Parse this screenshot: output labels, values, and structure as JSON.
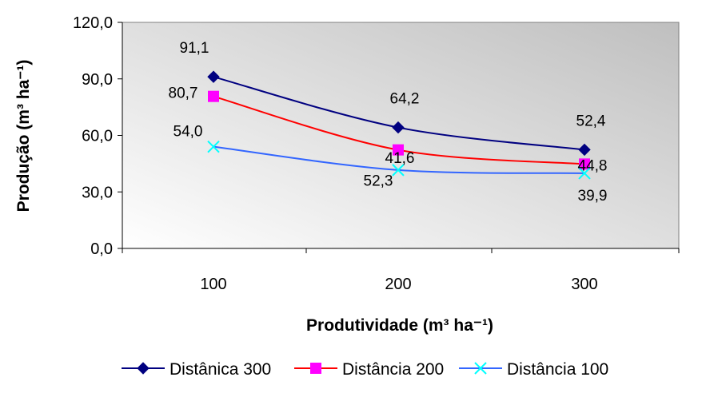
{
  "chart_data": {
    "type": "line",
    "categories": [
      "100",
      "200",
      "300"
    ],
    "y_ticks": [
      "0,0",
      "30,0",
      "60,0",
      "90,0",
      "120,0"
    ],
    "ylim": [
      0,
      120
    ],
    "xlabel": "Produtividade (m³ ha⁻¹)",
    "ylabel": "Produção (m³ ha⁻¹)",
    "legend_position": "bottom",
    "grid": false,
    "series": [
      {
        "name": "Distânica 300",
        "color": "#000080",
        "marker": "diamond",
        "values": [
          91.1,
          64.2,
          52.4
        ],
        "labels": [
          "91,1",
          "64,2",
          "52,4"
        ]
      },
      {
        "name": "Distância 200",
        "color": "#ff0000",
        "marker_color": "#ff00ff",
        "marker": "square",
        "values": [
          80.7,
          52.3,
          44.8
        ],
        "labels": [
          "80,7",
          "52,3",
          "44,8"
        ]
      },
      {
        "name": "Distância 100",
        "color": "#3366ff",
        "marker_color": "#00ffff",
        "marker": "x",
        "values": [
          54.0,
          41.6,
          39.9
        ],
        "labels": [
          "54,0",
          "41,6",
          "39,9"
        ]
      }
    ]
  }
}
